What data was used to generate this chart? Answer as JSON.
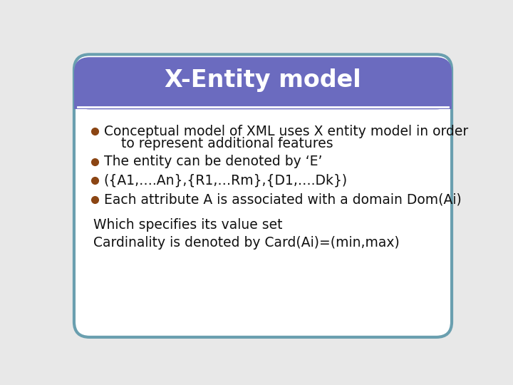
{
  "title": "X-Entity model",
  "title_bg_color": "#6B6BBF",
  "title_text_color": "#FFFFFF",
  "title_fontsize": 24,
  "body_bg_color": "#FFFFFF",
  "outer_bg_color": "#E8E8E8",
  "border_color": "#6A9FAF",
  "bullet_color": "#8B4513",
  "bullet_points": [
    [
      "Conceptual model of XML uses X entity model in order",
      "to represent additional features"
    ],
    [
      "The entity can be denoted by ‘E’"
    ],
    [
      "({A1,….An},{R1,…Rm},{D1,….Dk})"
    ],
    [
      "Each attribute A is associated with a domain Dom(Ai)"
    ]
  ],
  "extra_lines": [
    "Which specifies its value set",
    "Cardinality is denoted by Card(Ai)=(min,max)"
  ],
  "text_color": "#111111",
  "body_fontsize": 13.5,
  "extra_fontsize": 13.5,
  "separator_color": "#FFFFFF"
}
